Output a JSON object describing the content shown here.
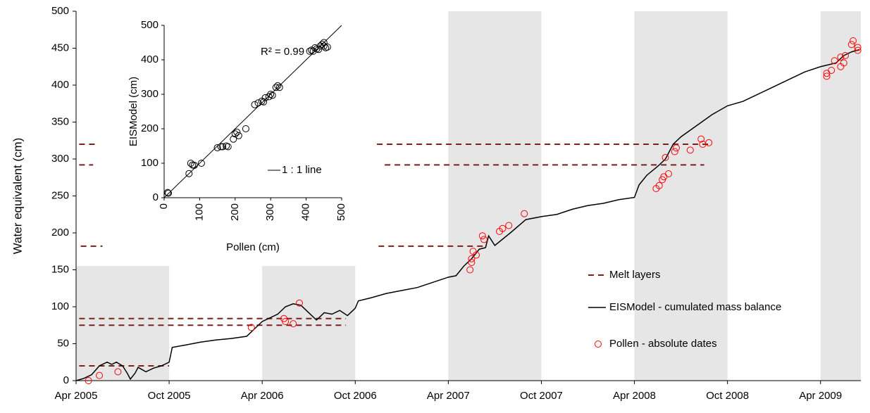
{
  "chart_data": [
    {
      "type": "line",
      "y_label": "Water equivalent (cm)",
      "xlim": [
        0,
        50.6
      ],
      "ylim": [
        0,
        500
      ],
      "xticks": [
        {
          "value": 0,
          "label": "Apr 2005"
        },
        {
          "value": 6,
          "label": "Oct 2005"
        },
        {
          "value": 12,
          "label": "Apr 2006"
        },
        {
          "value": 18,
          "label": "Oct 2006"
        },
        {
          "value": 24,
          "label": "Apr 2007"
        },
        {
          "value": 30,
          "label": "Oct 2007"
        },
        {
          "value": 36,
          "label": "Apr 2008"
        },
        {
          "value": 42,
          "label": "Oct 2008"
        },
        {
          "value": 48,
          "label": "Apr 2009"
        }
      ],
      "yticks": [
        0,
        50,
        100,
        150,
        200,
        250,
        300,
        350,
        400,
        450,
        500
      ],
      "shaded_periods": [
        [
          0,
          6,
          155
        ],
        [
          12,
          18,
          155
        ],
        [
          24,
          30,
          500
        ],
        [
          36,
          42,
          500
        ],
        [
          48,
          50.6,
          500
        ]
      ],
      "shade_color": "#e6e6e6",
      "series": [
        {
          "name": "Melt layers",
          "color": "#7b1f1f",
          "segments": [
            [
              0.2,
              1.2,
              320
            ],
            [
              0.2,
              1.1,
              292
            ],
            [
              0.3,
              1.7,
              182
            ],
            [
              0.2,
              17.4,
              84
            ],
            [
              0.2,
              17.4,
              75
            ],
            [
              0.2,
              6,
              20
            ],
            [
              19.4,
              40.8,
              320
            ],
            [
              19.9,
              40.5,
              292
            ],
            [
              19.5,
              26.5,
              182
            ]
          ]
        },
        {
          "name": "EISModel - cumulated mass balance",
          "color": "#000000",
          "x": [
            0,
            0.5,
            1,
            1.5,
            2,
            2.3,
            2.6,
            3,
            3.3,
            3.5,
            3.8,
            4,
            4.5,
            5,
            5.5,
            6,
            6.2,
            7,
            8,
            9,
            10,
            11,
            11.5,
            12,
            13,
            13.5,
            14,
            14.5,
            15,
            15.5,
            16,
            16.5,
            17,
            17.5,
            18,
            18.2,
            19,
            20,
            21,
            22,
            23,
            24,
            24.5,
            25,
            25.5,
            26,
            26.4,
            26.6,
            27,
            28,
            29,
            30,
            31,
            32,
            33,
            34,
            35,
            36,
            36.3,
            36.8,
            37.5,
            38,
            38.5,
            39,
            40,
            41,
            42,
            43,
            44,
            45,
            46,
            47,
            48,
            49,
            49.5,
            50,
            50.5
          ],
          "values": [
            0,
            3,
            8,
            20,
            25,
            22,
            25,
            20,
            10,
            2,
            10,
            18,
            12,
            17,
            20,
            25,
            45,
            48,
            52,
            55,
            57,
            60,
            70,
            80,
            90,
            100,
            104,
            102,
            92,
            82,
            92,
            90,
            95,
            88,
            98,
            108,
            112,
            118,
            122,
            126,
            133,
            140,
            142,
            155,
            165,
            178,
            180,
            196,
            183,
            200,
            218,
            222,
            225,
            232,
            237,
            240,
            245,
            248,
            265,
            278,
            290,
            300,
            320,
            330,
            345,
            360,
            372,
            378,
            388,
            398,
            408,
            418,
            425,
            430,
            440,
            445,
            448
          ]
        },
        {
          "name": "Pollen - absolute dates",
          "color": "#ff0000",
          "x": [
            0.8,
            1.5,
            2.7,
            11.3,
            13.4,
            13.5,
            14,
            14.4,
            25.4,
            25.5,
            25.5,
            25.6,
            25.8,
            26.2,
            26.3,
            27.3,
            27.5,
            27.9,
            28.9,
            37.4,
            37.6,
            37.8,
            37.9,
            38.2,
            38,
            38.6,
            38.7,
            39.6,
            40.3,
            40.4,
            40.8,
            48.4,
            48.4,
            48.7,
            48.9,
            49.3,
            49.3,
            49.5,
            49.6,
            50,
            50.1,
            50.4,
            50.4
          ],
          "values": [
            0,
            7,
            12,
            72,
            84,
            80,
            77,
            105,
            150,
            160,
            165,
            175,
            170,
            196,
            191,
            202,
            206,
            210,
            226,
            260,
            264,
            272,
            276,
            280,
            302,
            310,
            315,
            312,
            327,
            320,
            322,
            412,
            416,
            420,
            433,
            425,
            438,
            430,
            440,
            455,
            460,
            447,
            451
          ]
        }
      ]
    },
    {
      "type": "scatter",
      "x_label": "Pollen (cm)",
      "y_label": "EISModel (cm)",
      "annotation": "R² = 0.99",
      "xlim": [
        0,
        500
      ],
      "ylim": [
        0,
        500
      ],
      "xticks": [
        0,
        100,
        200,
        300,
        400,
        500
      ],
      "yticks": [
        0,
        100,
        200,
        300,
        400,
        500
      ],
      "color": "#000000",
      "x": [
        10,
        12,
        70,
        75,
        80,
        85,
        105,
        150,
        160,
        165,
        175,
        180,
        195,
        200,
        205,
        210,
        230,
        255,
        265,
        275,
        280,
        285,
        295,
        300,
        305,
        315,
        320,
        325,
        410,
        415,
        420,
        425,
        430,
        435,
        440,
        445,
        450,
        455,
        460,
        450
      ],
      "values": [
        15,
        13,
        70,
        100,
        95,
        94,
        100,
        145,
        148,
        148,
        150,
        148,
        170,
        185,
        190,
        180,
        200,
        270,
        275,
        280,
        278,
        290,
        293,
        300,
        297,
        320,
        325,
        320,
        425,
        428,
        425,
        435,
        432,
        430,
        440,
        445,
        450,
        435,
        437,
        440
      ],
      "reference_line": {
        "name": "1 : 1 line",
        "from": [
          0,
          0
        ],
        "to": [
          500,
          500
        ]
      }
    }
  ]
}
